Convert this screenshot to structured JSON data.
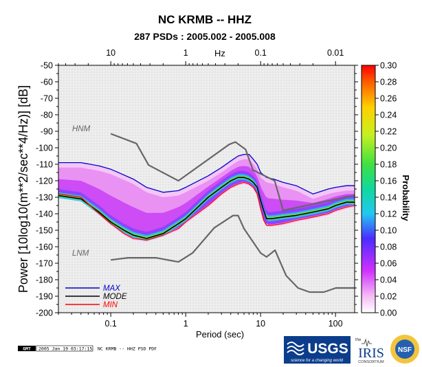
{
  "chart_data": {
    "type": "heatmap",
    "title": "NC KRMB -- HHZ",
    "subtitle": "287 PSDs : 2005.002 - 2005.008",
    "xlabel": "Period (sec)",
    "ylabel": "Power [10log10(m**2/sec**4/Hz)] [dB]",
    "top_axis_label": "Hz",
    "colorbar_label": "Probability",
    "x_scale": "log",
    "xlim": [
      0.02,
      180
    ],
    "ylim": [
      -200,
      -50
    ],
    "x_ticks": [
      0.1,
      1,
      10,
      100
    ],
    "x_tick_labels": [
      "0.1",
      "1",
      "10",
      "100"
    ],
    "top_ticks": [
      10,
      1,
      0.1,
      0.01
    ],
    "top_tick_labels": [
      "10",
      "1",
      "0.1",
      "0.01"
    ],
    "y_ticks": [
      -50,
      -60,
      -70,
      -80,
      -90,
      -100,
      -110,
      -120,
      -130,
      -140,
      -150,
      -160,
      -170,
      -180,
      -190,
      -200
    ],
    "y_tick_labels": [
      "-50",
      "-60",
      "-70",
      "-80",
      "-90",
      "-100",
      "-110",
      "-120",
      "-130",
      "-140",
      "-150",
      "-160",
      "-170",
      "-180",
      "-190",
      "-200"
    ],
    "colorbar_ticks": [
      "0.30",
      "0.28",
      "0.26",
      "0.24",
      "0.22",
      "0.20",
      "0.18",
      "0.16",
      "0.14",
      "0.12",
      "0.10",
      "0.08",
      "0.06",
      "0.04",
      "0.02",
      "0.00"
    ],
    "colorbar_range": [
      0,
      0.3
    ],
    "series": [
      {
        "name": "MAX",
        "color": "#0000cc",
        "x": [
          0.02,
          0.04,
          0.07,
          0.1,
          0.2,
          0.3,
          0.5,
          0.8,
          1,
          2,
          3,
          4,
          5,
          6,
          7,
          8,
          9,
          10,
          12,
          15,
          20,
          30,
          50,
          80,
          100,
          140,
          180
        ],
        "y": [
          -109,
          -109,
          -111,
          -113,
          -119,
          -124,
          -127,
          -126,
          -124,
          -117,
          -112,
          -108,
          -105,
          -104,
          -104,
          -107,
          -110,
          -115,
          -118,
          -119,
          -121,
          -123,
          -128,
          -125,
          -124,
          -123,
          -123
        ]
      },
      {
        "name": "MODE",
        "color": "#000000",
        "x": [
          0.02,
          0.04,
          0.07,
          0.1,
          0.15,
          0.2,
          0.3,
          0.5,
          0.8,
          1,
          2,
          3,
          4,
          5,
          6,
          7,
          8,
          9,
          10,
          11,
          12,
          14,
          20,
          30,
          50,
          80,
          100,
          140,
          180
        ],
        "y": [
          -129,
          -131,
          -139,
          -145,
          -150,
          -153,
          -155,
          -152,
          -146,
          -143,
          -130,
          -124,
          -120,
          -118,
          -118,
          -119,
          -121,
          -124,
          -132,
          -138,
          -143,
          -143,
          -142,
          -141,
          -139,
          -137,
          -135,
          -133,
          -133
        ]
      },
      {
        "name": "MIN",
        "color": "#ff0000",
        "x": [
          0.02,
          0.04,
          0.07,
          0.1,
          0.15,
          0.2,
          0.3,
          0.5,
          0.8,
          1,
          2,
          3,
          4,
          5,
          6,
          7,
          8,
          9,
          10,
          11,
          12,
          14,
          20,
          30,
          50,
          80,
          100,
          140,
          180
        ],
        "y": [
          -128,
          -130,
          -140,
          -146,
          -152,
          -155,
          -156,
          -153,
          -149,
          -145,
          -135,
          -128,
          -124,
          -122,
          -121,
          -122,
          -124,
          -128,
          -137,
          -144,
          -147,
          -147,
          -146,
          -144,
          -142,
          -140,
          -138,
          -136,
          -135
        ]
      },
      {
        "name": "HNM",
        "color": "#666666",
        "x": [
          0.1,
          0.22,
          0.32,
          0.8,
          3.8,
          4.6,
          6.3,
          7.9,
          15.4,
          20,
          354
        ],
        "y": [
          -91.5,
          -97.4,
          -110.5,
          -120,
          -98,
          -96.5,
          -101,
          -113.5,
          -120,
          -138,
          -126
        ]
      },
      {
        "name": "LNM",
        "color": "#666666",
        "x": [
          0.1,
          0.17,
          0.4,
          0.8,
          1.24,
          2.4,
          4.3,
          5,
          6,
          10,
          12,
          15.6,
          21.9,
          31.6,
          45,
          70,
          101,
          154,
          328
        ],
        "y": [
          -168,
          -166.7,
          -166.7,
          -169.2,
          -163.7,
          -148.6,
          -141.1,
          -141.1,
          -149,
          -163.8,
          -166.2,
          -162.1,
          -177.5,
          -185,
          -187.5,
          -187.5,
          -185,
          -185,
          -185
        ]
      }
    ],
    "legend": {
      "items": [
        "MAX",
        "MODE",
        "MIN"
      ],
      "placement": "bottom-left"
    },
    "curve_labels": [
      "HNM",
      "LNM"
    ]
  },
  "footer": {
    "gmt_logo": "GMT",
    "timestamp": "2005 Jan 19 03:17:15",
    "caption": "NC KRMB -- HHZ PSD PDF",
    "usgs_logo": "USGS",
    "usgs_tagline": "science for a changing world",
    "iris_top": "the",
    "iris_logo": "IRIS",
    "iris_sub": "CONSORTIUM",
    "nsf_logo": "NSF"
  }
}
